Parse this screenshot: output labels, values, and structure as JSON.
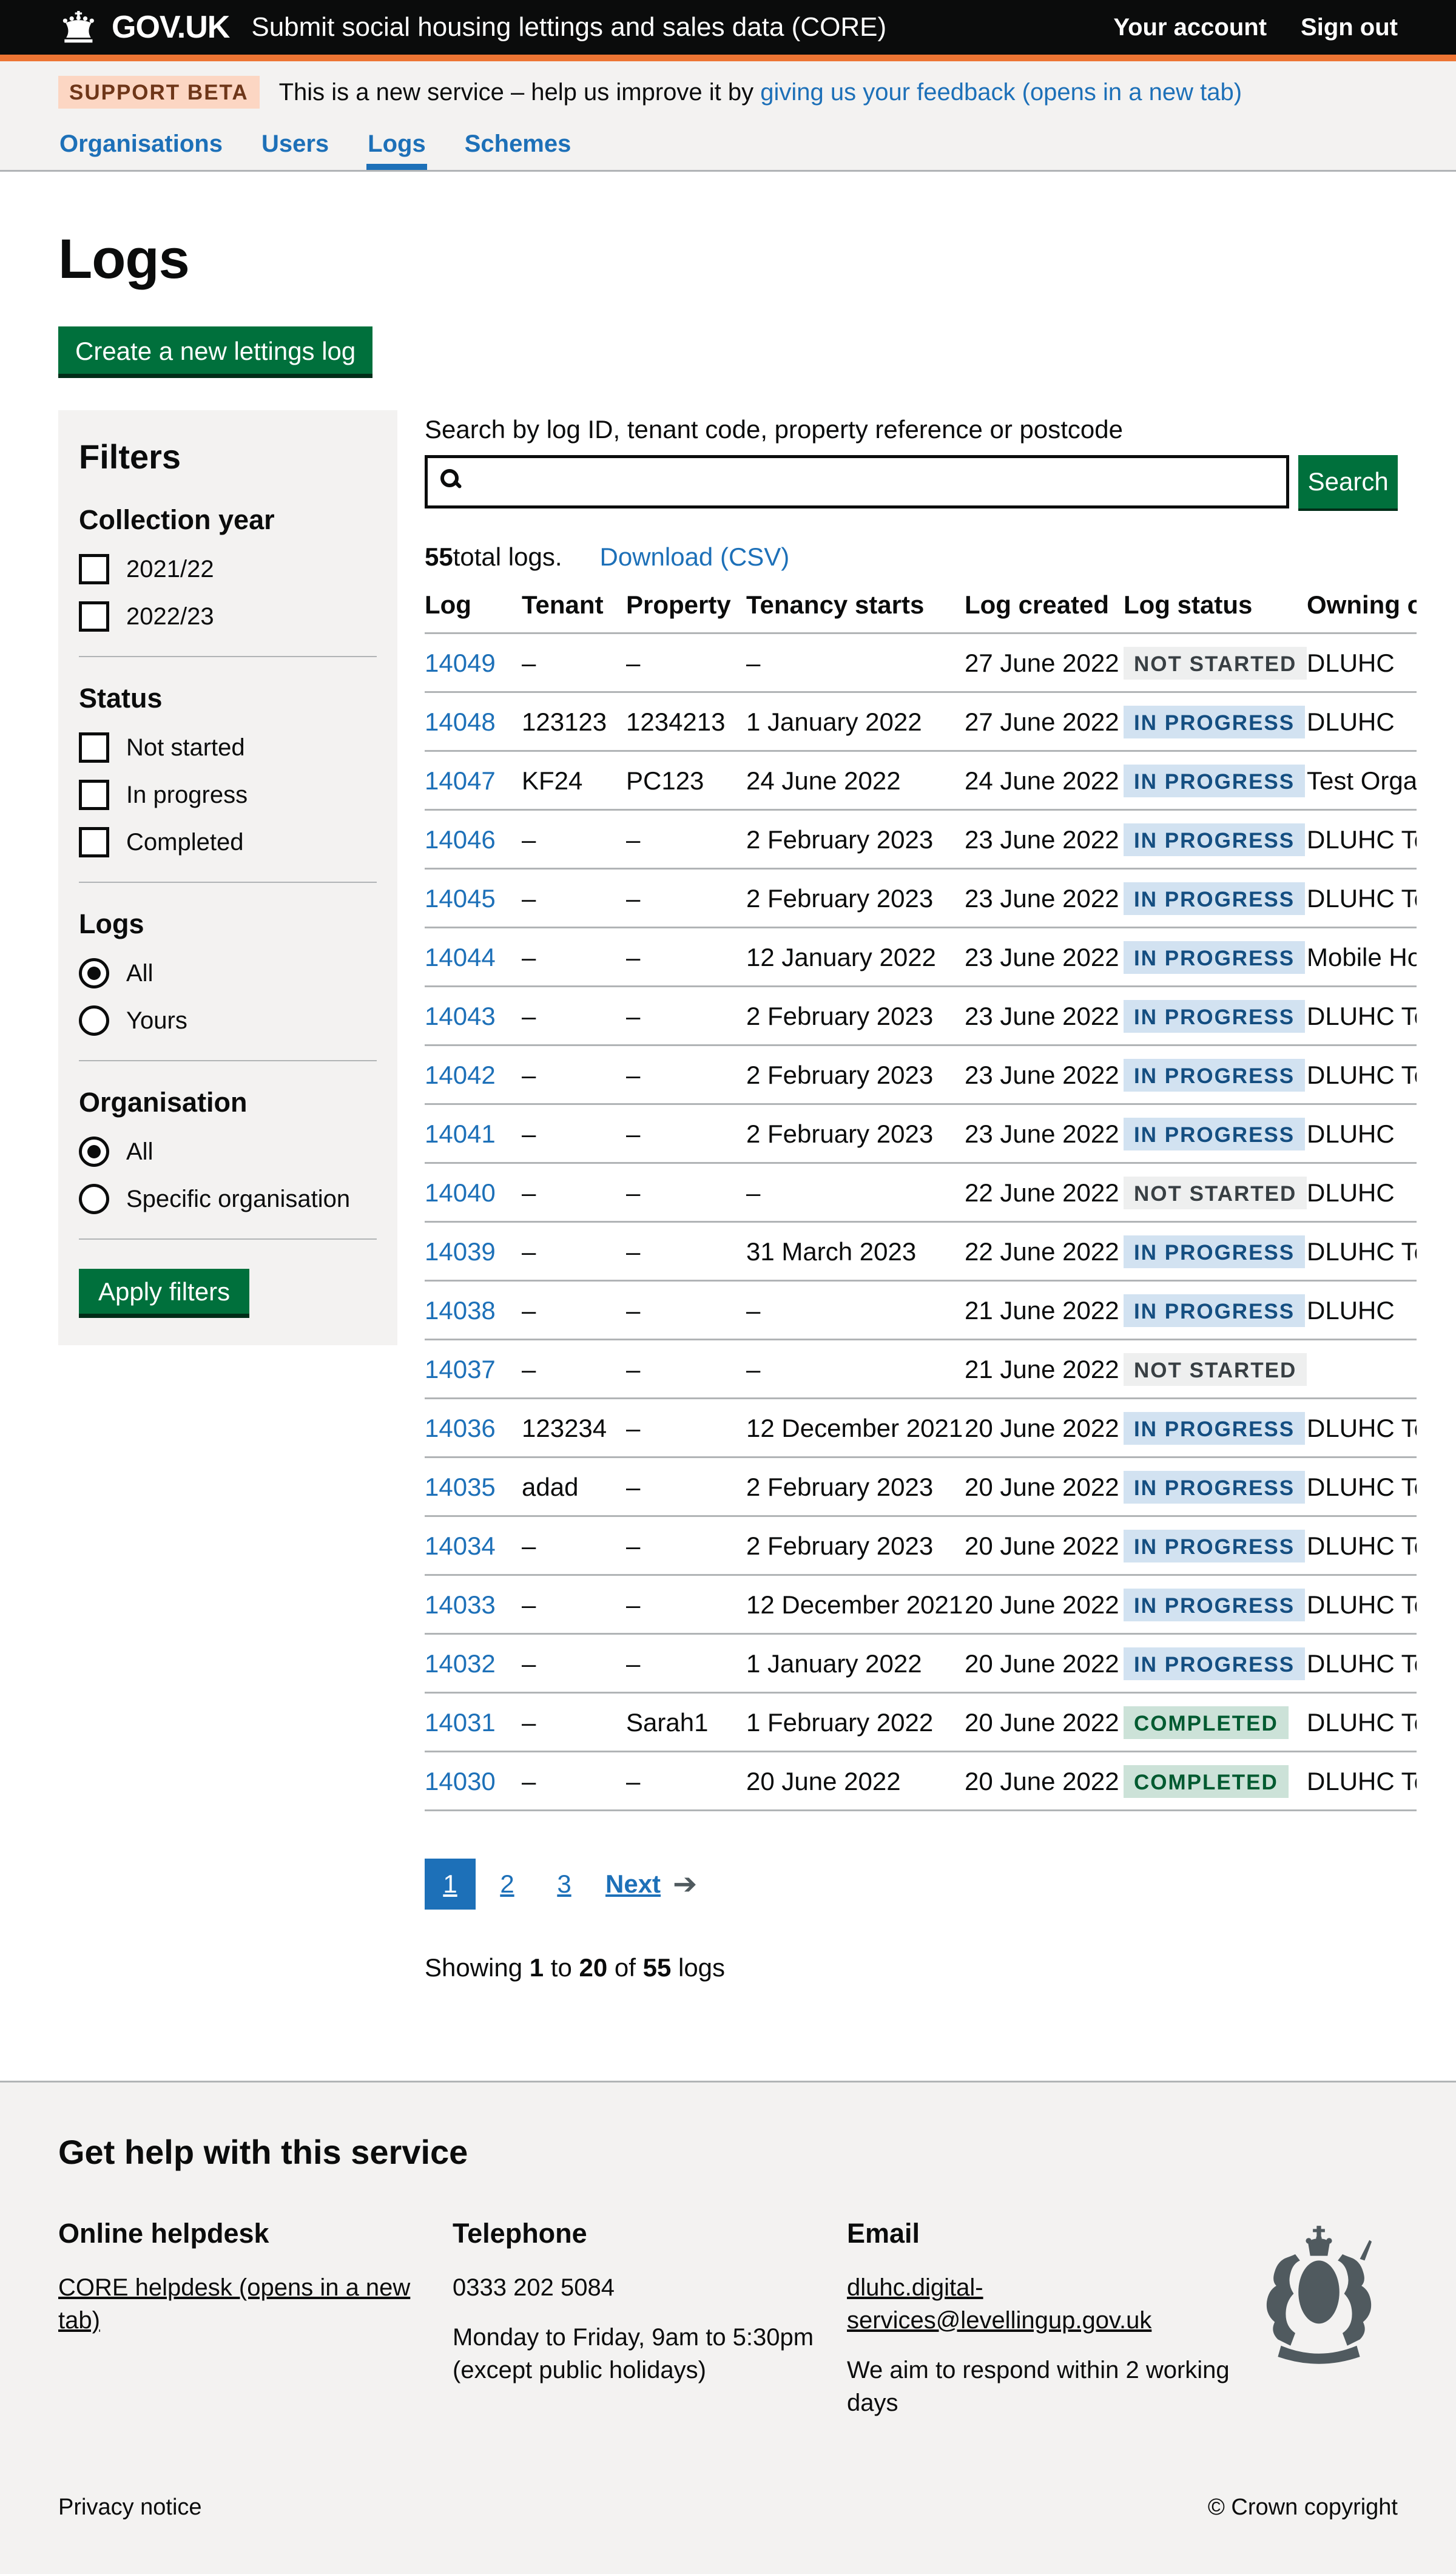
{
  "colors": {
    "header_bg": "#0b0c0c",
    "accent_orange": "#ed7534",
    "link_blue": "#1d70b8",
    "button_green": "#00703c",
    "panel_grey": "#f3f2f1",
    "border_grey": "#b1b4b6",
    "tag_grey_bg": "#eeefef",
    "tag_grey_text": "#383f43",
    "tag_blue_bg": "#d2e2f1",
    "tag_blue_text": "#144e81",
    "tag_green_bg": "#cce2d8",
    "tag_green_text": "#005a30",
    "footer_icon_grey": "#505a5f"
  },
  "header": {
    "logo_text": "GOV.UK",
    "service_name": "Submit social housing lettings and sales data (CORE)",
    "account_link": "Your account",
    "signout_link": "Sign out"
  },
  "phase_banner": {
    "tag": "SUPPORT BETA",
    "text_before_link": "This is a new service – help us improve it by ",
    "link_text": "giving us your feedback (opens in a new tab)"
  },
  "nav": {
    "items": [
      {
        "label": "Organisations",
        "active": false
      },
      {
        "label": "Users",
        "active": false
      },
      {
        "label": "Logs",
        "active": true
      },
      {
        "label": "Schemes",
        "active": false
      }
    ]
  },
  "page": {
    "title": "Logs",
    "create_button": "Create a new lettings log"
  },
  "filters": {
    "heading": "Filters",
    "collection_year": {
      "heading": "Collection year",
      "options": [
        "2021/22",
        "2022/23"
      ]
    },
    "status": {
      "heading": "Status",
      "options": [
        "Not started",
        "In progress",
        "Completed"
      ]
    },
    "logs": {
      "heading": "Logs",
      "options": [
        "All",
        "Yours"
      ],
      "selected": "All"
    },
    "organisation": {
      "heading": "Organisation",
      "options": [
        "All",
        "Specific organisation"
      ],
      "selected": "All"
    },
    "apply_button": "Apply filters"
  },
  "search": {
    "label": "Search by log ID, tenant code, property reference or postcode",
    "value": "",
    "button": "Search"
  },
  "results": {
    "total_count": "55",
    "total_suffix": " total logs.",
    "download_link": "Download (CSV)"
  },
  "table": {
    "headers": [
      "Log",
      "Tenant",
      "Property",
      "Tenancy starts",
      "Log created",
      "Log status",
      "Owning organisation"
    ],
    "rows": [
      {
        "log": "14049",
        "tenant": "–",
        "property": "–",
        "tenancy_starts": "–",
        "log_created": "27 June 2022",
        "status": "Not started",
        "status_type": "grey",
        "owning": "DLUHC"
      },
      {
        "log": "14048",
        "tenant": "123123",
        "property": "1234213",
        "tenancy_starts": "1 January 2022",
        "log_created": "27 June 2022",
        "status": "In progress",
        "status_type": "blue",
        "owning": "DLUHC"
      },
      {
        "log": "14047",
        "tenant": "KF24",
        "property": "PC123",
        "tenancy_starts": "24 June 2022",
        "log_created": "24 June 2022",
        "status": "In progress",
        "status_type": "blue",
        "owning": "Test Organis"
      },
      {
        "log": "14046",
        "tenant": "–",
        "property": "–",
        "tenancy_starts": "2 February 2023",
        "log_created": "23 June 2022",
        "status": "In progress",
        "status_type": "blue",
        "owning": "DLUHC Tes"
      },
      {
        "log": "14045",
        "tenant": "–",
        "property": "–",
        "tenancy_starts": "2 February 2023",
        "log_created": "23 June 2022",
        "status": "In progress",
        "status_type": "blue",
        "owning": "DLUHC Tes"
      },
      {
        "log": "14044",
        "tenant": "–",
        "property": "–",
        "tenancy_starts": "12 January 2022",
        "log_created": "23 June 2022",
        "status": "In progress",
        "status_type": "blue",
        "owning": "Mobile Hou"
      },
      {
        "log": "14043",
        "tenant": "–",
        "property": "–",
        "tenancy_starts": "2 February 2023",
        "log_created": "23 June 2022",
        "status": "In progress",
        "status_type": "blue",
        "owning": "DLUHC Tes"
      },
      {
        "log": "14042",
        "tenant": "–",
        "property": "–",
        "tenancy_starts": "2 February 2023",
        "log_created": "23 June 2022",
        "status": "In progress",
        "status_type": "blue",
        "owning": "DLUHC Tes"
      },
      {
        "log": "14041",
        "tenant": "–",
        "property": "–",
        "tenancy_starts": "2 February 2023",
        "log_created": "23 June 2022",
        "status": "In progress",
        "status_type": "blue",
        "owning": "DLUHC"
      },
      {
        "log": "14040",
        "tenant": "–",
        "property": "–",
        "tenancy_starts": "–",
        "log_created": "22 June 2022",
        "status": "Not started",
        "status_type": "grey",
        "owning": "DLUHC"
      },
      {
        "log": "14039",
        "tenant": "–",
        "property": "–",
        "tenancy_starts": "31 March 2023",
        "log_created": "22 June 2022",
        "status": "In progress",
        "status_type": "blue",
        "owning": "DLUHC Tes"
      },
      {
        "log": "14038",
        "tenant": "–",
        "property": "–",
        "tenancy_starts": "–",
        "log_created": "21 June 2022",
        "status": "In progress",
        "status_type": "blue",
        "owning": "DLUHC"
      },
      {
        "log": "14037",
        "tenant": "–",
        "property": "–",
        "tenancy_starts": "–",
        "log_created": "21 June 2022",
        "status": "Not started",
        "status_type": "grey",
        "owning": ""
      },
      {
        "log": "14036",
        "tenant": "123234",
        "property": "–",
        "tenancy_starts": "12 December 2021",
        "log_created": "20 June 2022",
        "status": "In progress",
        "status_type": "blue",
        "owning": "DLUHC Tes"
      },
      {
        "log": "14035",
        "tenant": "adad",
        "property": "–",
        "tenancy_starts": "2 February 2023",
        "log_created": "20 June 2022",
        "status": "In progress",
        "status_type": "blue",
        "owning": "DLUHC Tes"
      },
      {
        "log": "14034",
        "tenant": "–",
        "property": "–",
        "tenancy_starts": "2 February 2023",
        "log_created": "20 June 2022",
        "status": "In progress",
        "status_type": "blue",
        "owning": "DLUHC Tes"
      },
      {
        "log": "14033",
        "tenant": "–",
        "property": "–",
        "tenancy_starts": "12 December 2021",
        "log_created": "20 June 2022",
        "status": "In progress",
        "status_type": "blue",
        "owning": "DLUHC Tes"
      },
      {
        "log": "14032",
        "tenant": "–",
        "property": "–",
        "tenancy_starts": "1 January 2022",
        "log_created": "20 June 2022",
        "status": "In progress",
        "status_type": "blue",
        "owning": "DLUHC Tes"
      },
      {
        "log": "14031",
        "tenant": "–",
        "property": "Sarah1",
        "tenancy_starts": "1 February 2022",
        "log_created": "20 June 2022",
        "status": "Completed",
        "status_type": "green",
        "owning": "DLUHC Tes"
      },
      {
        "log": "14030",
        "tenant": "–",
        "property": "–",
        "tenancy_starts": "20 June 2022",
        "log_created": "20 June 2022",
        "status": "Completed",
        "status_type": "green",
        "owning": "DLUHC Tes"
      }
    ]
  },
  "pagination": {
    "pages": [
      "1",
      "2",
      "3"
    ],
    "current": "1",
    "next_label": "Next",
    "showing": {
      "prefix": "Showing ",
      "from": "1",
      "sep1": " to ",
      "to": "20",
      "sep2": " of ",
      "total": "55",
      "suffix": " logs"
    }
  },
  "footer": {
    "heading": "Get help with this service",
    "columns": [
      {
        "heading": "Online helpdesk",
        "link": "CORE helpdesk (opens in a new tab)"
      },
      {
        "heading": "Telephone",
        "phone": "0333 202 5084",
        "line1": "Monday to Friday, 9am to 5:30pm",
        "line2": "(except public holidays)"
      },
      {
        "heading": "Email",
        "link": "dluhc.digital-services@levellingup.gov.uk",
        "line1": "We aim to respond within 2 working days"
      }
    ],
    "privacy_link": "Privacy notice",
    "copyright": "© Crown copyright"
  }
}
